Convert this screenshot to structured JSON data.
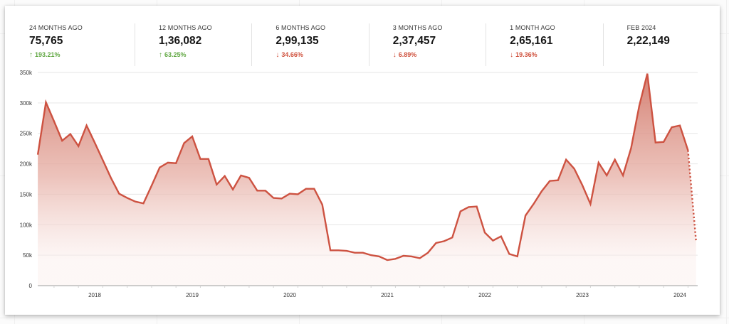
{
  "colors": {
    "line": "#cd5241",
    "fill_top": "#d27a6c",
    "up": "#62a844",
    "down": "#d0533f",
    "grid": "#e6e6e6",
    "axis": "#b0b0b0"
  },
  "kpis": [
    {
      "label": "24 MONTHS AGO",
      "value": "75,765",
      "delta": "193.21%",
      "direction": "up",
      "arrow": "↑"
    },
    {
      "label": "12 MONTHS AGO",
      "value": "1,36,082",
      "delta": "63.25%",
      "direction": "up",
      "arrow": "↑"
    },
    {
      "label": "6 MONTHS AGO",
      "value": "2,99,135",
      "delta": "34.66%",
      "direction": "down",
      "arrow": "↓"
    },
    {
      "label": "3 MONTHS AGO",
      "value": "2,37,457",
      "delta": "6.89%",
      "direction": "down",
      "arrow": "↓"
    },
    {
      "label": "1 MONTH AGO",
      "value": "2,65,161",
      "delta": "19.36%",
      "direction": "down",
      "arrow": "↓"
    },
    {
      "label": "FEB 2024",
      "value": "2,22,149",
      "delta": "",
      "direction": "none",
      "arrow": ""
    }
  ],
  "chart_data": {
    "type": "area",
    "title": "",
    "xlabel": "",
    "ylabel": "",
    "ylim": [
      0,
      350000
    ],
    "yticks": [
      0,
      50000,
      100000,
      150000,
      200000,
      250000,
      300000,
      350000
    ],
    "ytick_labels": [
      "0",
      "50k",
      "100k",
      "150k",
      "200k",
      "250k",
      "300k",
      "350k"
    ],
    "xtick_labels": [
      "2018",
      "2019",
      "2020",
      "2021",
      "2022",
      "2023",
      "2024"
    ],
    "grid": true,
    "legend": null,
    "x": [
      "2017-06",
      "2017-07",
      "2017-08",
      "2017-09",
      "2017-10",
      "2017-11",
      "2017-12",
      "2018-01",
      "2018-02",
      "2018-03",
      "2018-04",
      "2018-05",
      "2018-06",
      "2018-07",
      "2018-08",
      "2018-09",
      "2018-10",
      "2018-11",
      "2018-12",
      "2019-01",
      "2019-02",
      "2019-03",
      "2019-04",
      "2019-05",
      "2019-06",
      "2019-07",
      "2019-08",
      "2019-09",
      "2019-10",
      "2019-11",
      "2019-12",
      "2020-01",
      "2020-02",
      "2020-03",
      "2020-04",
      "2020-05",
      "2020-06",
      "2020-07",
      "2020-08",
      "2020-09",
      "2020-10",
      "2020-11",
      "2020-12",
      "2021-01",
      "2021-02",
      "2021-03",
      "2021-04",
      "2021-05",
      "2021-06",
      "2021-07",
      "2021-08",
      "2021-09",
      "2021-10",
      "2021-11",
      "2021-12",
      "2022-01",
      "2022-02",
      "2022-03",
      "2022-04",
      "2022-05",
      "2022-06",
      "2022-07",
      "2022-08",
      "2022-09",
      "2022-10",
      "2022-11",
      "2022-12",
      "2023-01",
      "2023-02",
      "2023-03",
      "2023-04",
      "2023-05",
      "2023-06",
      "2023-07",
      "2023-08",
      "2023-09",
      "2023-10",
      "2023-11",
      "2023-12",
      "2024-01",
      "2024-02",
      "2024-03"
    ],
    "series": [
      {
        "name": "value",
        "values": [
          215000,
          301000,
          270000,
          238000,
          249000,
          229000,
          263000,
          235000,
          206000,
          177000,
          151000,
          144000,
          138000,
          135000,
          164000,
          194000,
          202000,
          201000,
          234000,
          245000,
          208000,
          208000,
          166000,
          180000,
          158000,
          181000,
          177000,
          156000,
          156000,
          144000,
          143000,
          151000,
          150000,
          159000,
          159000,
          133000,
          58000,
          58000,
          57000,
          54000,
          54000,
          50000,
          48000,
          42000,
          44000,
          49000,
          48000,
          45000,
          54000,
          70000,
          73000,
          79000,
          122000,
          129000,
          130000,
          87000,
          74000,
          81000,
          52000,
          48000,
          115000,
          134000,
          155000,
          172000,
          173000,
          207000,
          192000,
          165000,
          134000,
          202000,
          181000,
          207000,
          181000,
          226000,
          295000,
          348000,
          235000,
          236000,
          260000,
          263000,
          222149,
          72000
        ],
        "projected_from_index": 80
      }
    ]
  }
}
